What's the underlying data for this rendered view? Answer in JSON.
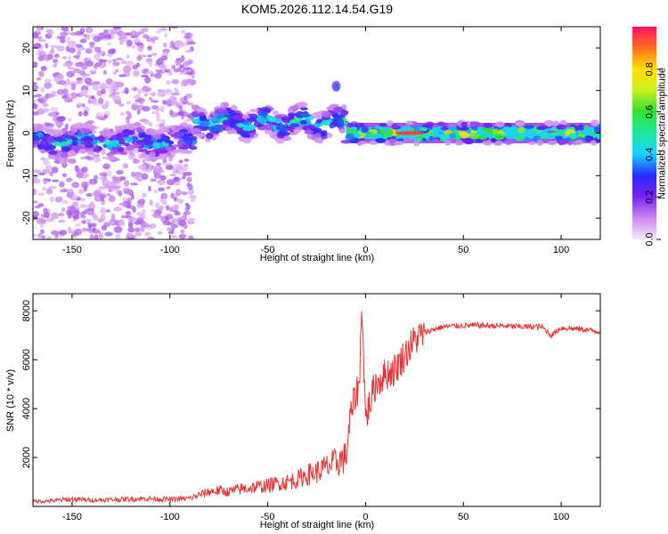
{
  "title": "KOM5.2026.112.14.54.G19",
  "chart_data": [
    {
      "type": "heatmap",
      "title": "",
      "xlabel": "Height of straight line (km)",
      "ylabel": "Frequency (Hz)",
      "xlim": [
        -170,
        120
      ],
      "ylim": [
        -25,
        25
      ],
      "x_ticks": [
        -150,
        -100,
        -50,
        0,
        50,
        100
      ],
      "y_ticks": [
        -20,
        -10,
        0,
        10,
        20
      ],
      "colorbar": {
        "label": "Normalized spectral amplitude",
        "ticks": [
          0.0,
          0.2,
          0.4,
          0.6,
          0.8
        ],
        "range": [
          0,
          1
        ]
      },
      "features": [
        {
          "name": "scattered noise",
          "x_range": [
            -170,
            -88
          ],
          "freq_range": [
            -25,
            25
          ],
          "amplitude": 0.1
        },
        {
          "name": "main band west",
          "x_range": [
            -170,
            -88
          ],
          "center_freq": -2,
          "half_width": 2,
          "amplitude": 0.35
        },
        {
          "name": "main band rising",
          "x_range": [
            -88,
            -10
          ],
          "center_freq": 2.5,
          "half_width": 2,
          "amplitude": 0.4
        },
        {
          "name": "isolated blob",
          "x": -15,
          "freq": 11,
          "amplitude": 0.35
        },
        {
          "name": "main band east",
          "x_range": [
            -10,
            120
          ],
          "center_freq": 0,
          "half_width": 1.5,
          "amplitude": 0.6
        },
        {
          "name": "peak",
          "x_range": [
            15,
            30
          ],
          "freq": 0,
          "amplitude": 0.95
        }
      ]
    },
    {
      "type": "line",
      "title": "",
      "xlabel": "Height of straight line (km)",
      "ylabel": "SNR (10 * v/v)",
      "xlim": [
        -170,
        120
      ],
      "ylim": [
        0,
        8700
      ],
      "x_ticks": [
        -150,
        -100,
        -50,
        0,
        50,
        100
      ],
      "y_ticks": [
        2000,
        4000,
        6000,
        8000
      ],
      "series": [
        {
          "name": "SNR",
          "color": "#e83535",
          "x": [
            -170,
            -160,
            -150,
            -140,
            -130,
            -120,
            -110,
            -100,
            -90,
            -80,
            -75,
            -70,
            -65,
            -60,
            -55,
            -50,
            -45,
            -40,
            -35,
            -30,
            -25,
            -20,
            -15,
            -10,
            -8,
            -5,
            -3,
            -2,
            0,
            5,
            10,
            15,
            20,
            25,
            30,
            35,
            40,
            50,
            60,
            70,
            80,
            90,
            95,
            100,
            110,
            120
          ],
          "values": [
            200,
            230,
            300,
            260,
            280,
            300,
            320,
            280,
            330,
            600,
            650,
            600,
            700,
            750,
            800,
            850,
            950,
            1000,
            1100,
            1300,
            1400,
            1600,
            1800,
            2000,
            3500,
            4600,
            5000,
            8600,
            3600,
            5000,
            5400,
            5600,
            6200,
            6800,
            7100,
            7250,
            7350,
            7400,
            7400,
            7380,
            7350,
            7350,
            7000,
            7300,
            7250,
            7150
          ]
        }
      ]
    }
  ]
}
